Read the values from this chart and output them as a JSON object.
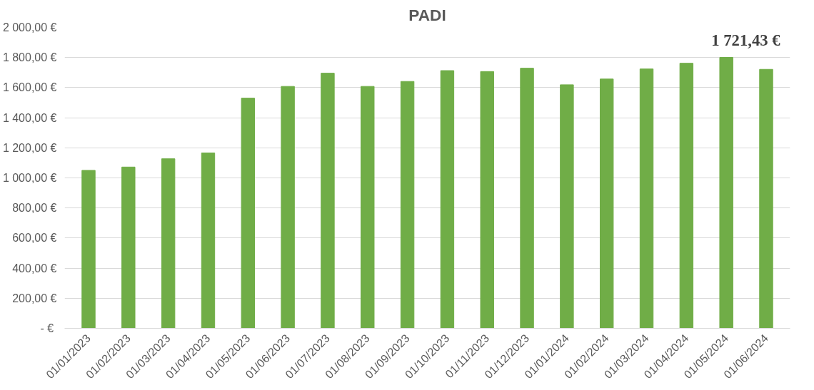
{
  "chart_data": {
    "type": "bar",
    "title": "PADI",
    "categories": [
      "01/01/2023",
      "01/02/2023",
      "01/03/2023",
      "01/04/2023",
      "01/05/2023",
      "01/06/2023",
      "01/07/2023",
      "01/08/2023",
      "01/09/2023",
      "01/10/2023",
      "01/11/2023",
      "01/12/2023",
      "01/01/2024",
      "01/02/2024",
      "01/03/2024",
      "01/04/2024",
      "01/05/2024",
      "01/06/2024"
    ],
    "values": [
      1050,
      1072,
      1127,
      1166,
      1530,
      1608,
      1696,
      1608,
      1641,
      1713,
      1707,
      1729,
      1619,
      1657,
      1724,
      1762,
      1801,
      1721.43
    ],
    "value_labels": [
      null,
      null,
      null,
      null,
      null,
      null,
      null,
      null,
      null,
      null,
      null,
      null,
      null,
      null,
      null,
      null,
      null,
      "1 721,43 €"
    ],
    "color": "#70ad47",
    "ylim": [
      0,
      2000
    ],
    "yticks": [
      {
        "value": 0,
        "label": "-  €"
      },
      {
        "value": 200,
        "label": "200,00 €"
      },
      {
        "value": 400,
        "label": "400,00 €"
      },
      {
        "value": 600,
        "label": "600,00 €"
      },
      {
        "value": 800,
        "label": "800,00 €"
      },
      {
        "value": 1000,
        "label": "1 000,00 €"
      },
      {
        "value": 1200,
        "label": "1 200,00 €"
      },
      {
        "value": 1400,
        "label": "1 400,00 €"
      },
      {
        "value": 1600,
        "label": "1 600,00 €"
      },
      {
        "value": 1800,
        "label": "1 800,00 €"
      },
      {
        "value": 2000,
        "label": "2 000,00 €"
      }
    ],
    "grid": "y"
  }
}
